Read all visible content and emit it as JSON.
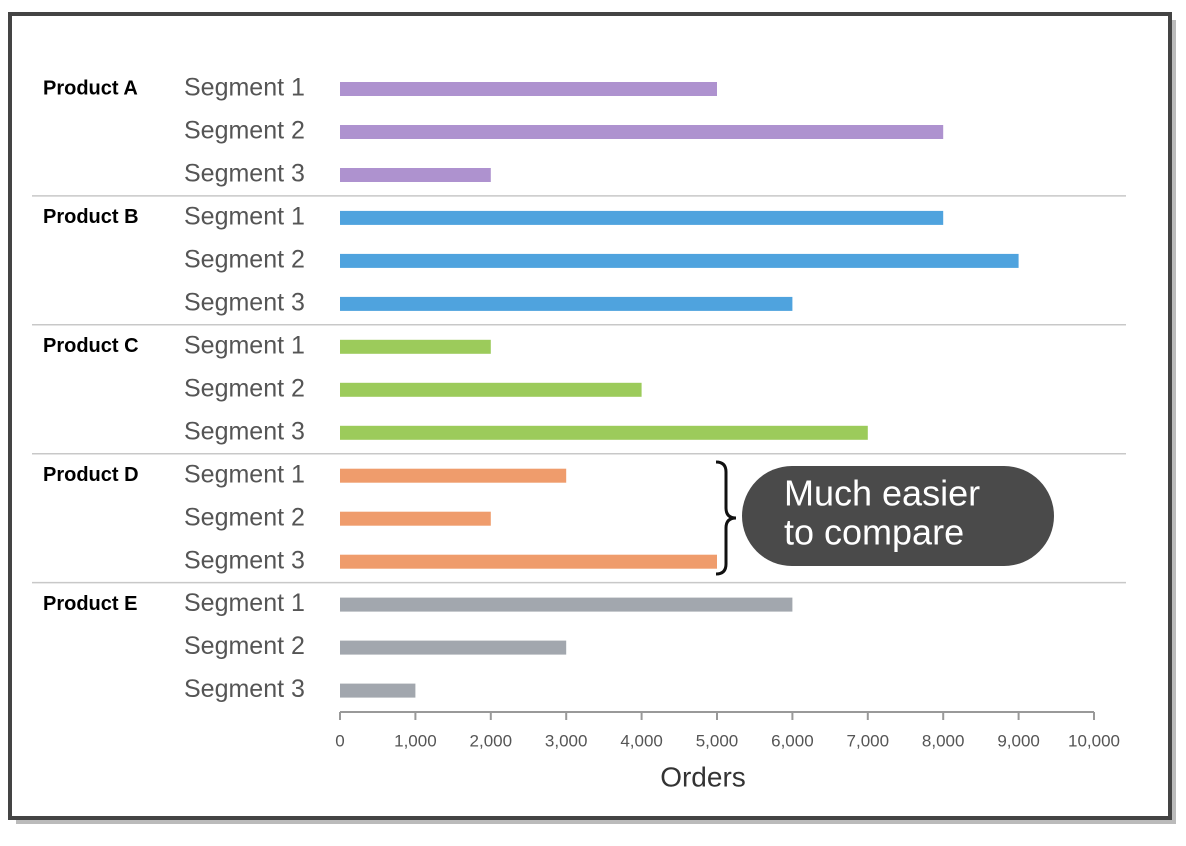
{
  "chart_data": {
    "type": "grouped-hbar",
    "x_label": "Orders",
    "xlim": [
      0,
      10000
    ],
    "xticks": [
      0,
      {
        "value": 1000,
        "label": "1,000"
      },
      {
        "value": 2000,
        "label": "2,000"
      },
      {
        "value": 3000,
        "label": "3,000"
      },
      {
        "value": 4000,
        "label": "4,000"
      },
      {
        "value": 5000,
        "label": "5,000"
      },
      {
        "value": 6000,
        "label": "6,000"
      },
      {
        "value": 7000,
        "label": "7,000"
      },
      {
        "value": 8000,
        "label": "8,000"
      },
      {
        "value": 9000,
        "label": "9,000"
      },
      {
        "value": 10000,
        "label": "10,000"
      }
    ],
    "groups": [
      {
        "name": "Product A",
        "color": "#ae92cf",
        "categories": [
          "Segment 1",
          "Segment 2",
          "Segment 3"
        ],
        "values": [
          5000,
          8000,
          2000
        ]
      },
      {
        "name": "Product B",
        "color": "#4fa3de",
        "categories": [
          "Segment 1",
          "Segment 2",
          "Segment 3"
        ],
        "values": [
          8000,
          9000,
          6000
        ]
      },
      {
        "name": "Product C",
        "color": "#9ccb5b",
        "categories": [
          "Segment 1",
          "Segment 2",
          "Segment 3"
        ],
        "values": [
          2000,
          4000,
          7000
        ]
      },
      {
        "name": "Product D",
        "color": "#ef9c6c",
        "categories": [
          "Segment 1",
          "Segment 2",
          "Segment 3"
        ],
        "values": [
          3000,
          2000,
          5000
        ]
      },
      {
        "name": "Product E",
        "color": "#a2a7ae",
        "categories": [
          "Segment 1",
          "Segment 2",
          "Segment 3"
        ],
        "values": [
          6000,
          3000,
          1000
        ]
      }
    ],
    "annotation": [
      "Much easier",
      "to compare"
    ]
  }
}
